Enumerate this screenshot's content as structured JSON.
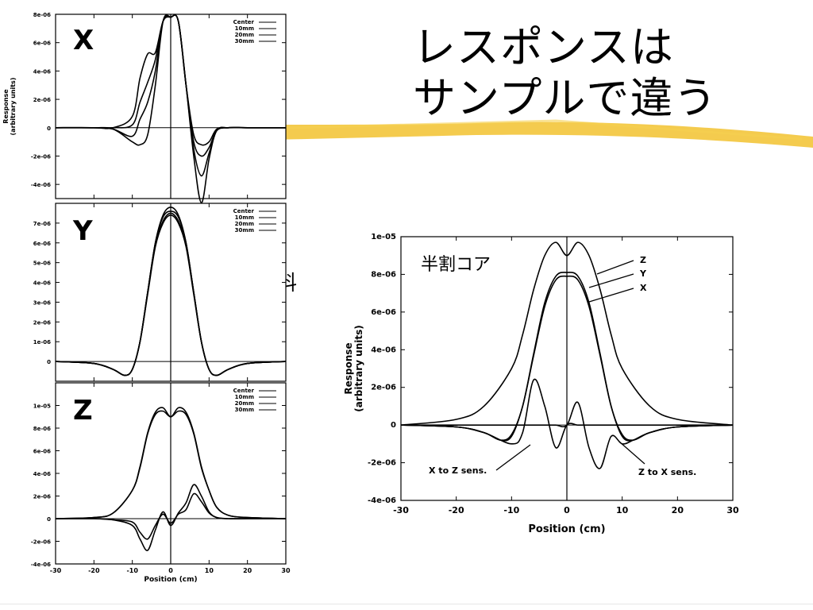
{
  "slide": {
    "title_line1": "レスポンスは",
    "title_line2": "サンプルで違う",
    "point_sample_label": "点試料",
    "half_core_label": "半割コア"
  },
  "chart_data": [
    {
      "type": "line",
      "panel": "X",
      "ylabel": "Response\n(arbitrary units)",
      "xlim": [
        -30,
        30
      ],
      "ylim": [
        -5e-06,
        8e-06
      ],
      "yticks": [
        "8e-06",
        "6e-06",
        "4e-06",
        "2e-06",
        "0",
        "-2e-06",
        "-4e-06"
      ],
      "legend": [
        "Center",
        "10mm",
        "20mm",
        "30mm"
      ],
      "legend_position": "top-right",
      "series": [
        {
          "name": "Center",
          "x": [
            -30,
            -20,
            -15,
            -10,
            -8,
            -6,
            -4,
            -2,
            0,
            2,
            4,
            6,
            8,
            10,
            12,
            15,
            20,
            30
          ],
          "y": [
            0,
            0,
            -1e-07,
            -1e-06,
            -1.2e-06,
            -5e-07,
            3e-06,
            7.5e-06,
            7.8e-06,
            7.5e-06,
            3e-06,
            -5e-07,
            -1.2e-06,
            -1e-06,
            -1e-07,
            0,
            0,
            0
          ]
        },
        {
          "name": "10mm",
          "x": [
            -30,
            -20,
            -15,
            -10,
            -8,
            -6,
            -4,
            -2,
            0,
            2,
            4,
            6,
            8,
            10,
            12,
            15,
            20,
            30
          ],
          "y": [
            0,
            0,
            -1e-07,
            -6e-07,
            6e-07,
            1.8e-06,
            4e-06,
            7.5e-06,
            7.8e-06,
            7.5e-06,
            3e-06,
            -1e-06,
            -2e-06,
            -1.4e-06,
            -2e-07,
            0,
            0,
            0
          ]
        },
        {
          "name": "20mm",
          "x": [
            -30,
            -20,
            -15,
            -10,
            -8,
            -6,
            -4,
            -2,
            0,
            2,
            4,
            6,
            8,
            10,
            12,
            15,
            20,
            30
          ],
          "y": [
            0,
            0,
            0,
            2e-07,
            1.8e-06,
            3.2e-06,
            4.8e-06,
            7.5e-06,
            7.8e-06,
            7.5e-06,
            3e-06,
            -1.5e-06,
            -3.4e-06,
            -1.8e-06,
            -2e-07,
            0,
            0,
            0
          ]
        },
        {
          "name": "30mm",
          "x": [
            -30,
            -20,
            -15,
            -10,
            -8,
            -6,
            -4,
            -2,
            0,
            2,
            4,
            6,
            8,
            10,
            12,
            15,
            20,
            30
          ],
          "y": [
            0,
            0,
            0,
            8e-07,
            3.5e-06,
            5.2e-06,
            5.3e-06,
            7.5e-06,
            7.8e-06,
            7.5e-06,
            3e-06,
            -2e-06,
            -5.3e-06,
            -2.2e-06,
            -2e-07,
            0,
            0,
            0
          ]
        }
      ]
    },
    {
      "type": "line",
      "panel": "Y",
      "xlim": [
        -30,
        30
      ],
      "ylim": [
        -1e-06,
        8e-06
      ],
      "yticks": [
        "7e-06",
        "6e-06",
        "5e-06",
        "4e-06",
        "3e-06",
        "2e-06",
        "1e-06",
        "0"
      ],
      "legend": [
        "Center",
        "10mm",
        "20mm",
        "30mm"
      ],
      "legend_position": "top-right",
      "series": [
        {
          "name": "Center",
          "x": [
            -30,
            -20,
            -15,
            -12,
            -10,
            -8,
            -6,
            -4,
            -2,
            0,
            2,
            4,
            6,
            8,
            10,
            12,
            15,
            20,
            30
          ],
          "y": [
            0,
            -1e-07,
            -4e-07,
            -7e-07,
            -4e-07,
            1e-06,
            3.5e-06,
            6e-06,
            7.4e-06,
            7.8e-06,
            7.4e-06,
            6e-06,
            3.5e-06,
            1e-06,
            -4e-07,
            -7e-07,
            -4e-07,
            -1e-07,
            0
          ]
        },
        {
          "name": "10mm",
          "x": [
            -30,
            -20,
            -15,
            -12,
            -10,
            -8,
            -6,
            -4,
            -2,
            0,
            2,
            4,
            6,
            8,
            10,
            12,
            15,
            20,
            30
          ],
          "y": [
            0,
            -1e-07,
            -4e-07,
            -7e-07,
            -4e-07,
            1e-06,
            3.5e-06,
            6e-06,
            7.3e-06,
            7.6e-06,
            7.3e-06,
            6e-06,
            3.5e-06,
            1e-06,
            -4e-07,
            -7e-07,
            -4e-07,
            -1e-07,
            0
          ]
        },
        {
          "name": "20mm",
          "x": [
            -30,
            -20,
            -15,
            -12,
            -10,
            -8,
            -6,
            -4,
            -2,
            0,
            2,
            4,
            6,
            8,
            10,
            12,
            15,
            20,
            30
          ],
          "y": [
            0,
            -1e-07,
            -4e-07,
            -7e-07,
            -4e-07,
            1e-06,
            3.5e-06,
            5.9e-06,
            7.1e-06,
            7.5e-06,
            7.1e-06,
            5.9e-06,
            3.5e-06,
            1e-06,
            -4e-07,
            -7e-07,
            -4e-07,
            -1e-07,
            0
          ]
        },
        {
          "name": "30mm",
          "x": [
            -30,
            -20,
            -15,
            -12,
            -10,
            -8,
            -6,
            -4,
            -2,
            0,
            2,
            4,
            6,
            8,
            10,
            12,
            15,
            20,
            30
          ],
          "y": [
            0,
            -1e-07,
            -4e-07,
            -7e-07,
            -4e-07,
            1e-06,
            3.4e-06,
            5.8e-06,
            7e-06,
            7.4e-06,
            7e-06,
            5.8e-06,
            3.4e-06,
            1e-06,
            -4e-07,
            -7e-07,
            -4e-07,
            -1e-07,
            0
          ]
        }
      ]
    },
    {
      "type": "line",
      "panel": "Z",
      "xlabel": "Position (cm)",
      "xlim": [
        -30,
        30
      ],
      "ylim": [
        -4e-06,
        1.2e-05
      ],
      "xticks": [
        "-30",
        "-20",
        "-10",
        "0",
        "10",
        "20",
        "30"
      ],
      "yticks": [
        "1e-05",
        "8e-06",
        "6e-06",
        "4e-06",
        "2e-06",
        "0",
        "-2e-06",
        "-4e-06"
      ],
      "legend": [
        "Center",
        "10mm",
        "20mm",
        "30mm"
      ],
      "legend_position": "top-right",
      "series": [
        {
          "name": "Center",
          "x": [
            -30,
            -20,
            -15,
            -10,
            -8,
            -6,
            -4,
            -2,
            0,
            2,
            4,
            6,
            8,
            10,
            12,
            15,
            20,
            30
          ],
          "y": [
            0,
            1e-07,
            5e-07,
            2.5e-06,
            4.5e-06,
            7.5e-06,
            9.2e-06,
            9.5e-06,
            9e-06,
            9.5e-06,
            9.2e-06,
            7.5e-06,
            4.5e-06,
            2.5e-06,
            1e-06,
            3e-07,
            1e-07,
            0
          ]
        },
        {
          "name": "10mm",
          "x": [
            -30,
            -20,
            -15,
            -10,
            -8,
            -6,
            -4,
            -2,
            0,
            2,
            4,
            6,
            8,
            10,
            12,
            15,
            20,
            30
          ],
          "y": [
            0,
            1e-07,
            5e-07,
            2.5e-06,
            4.6e-06,
            7.6e-06,
            9.4e-06,
            9.8e-06,
            9e-06,
            9.8e-06,
            9.4e-06,
            7.6e-06,
            4.6e-06,
            2.5e-06,
            1e-06,
            3e-07,
            1e-07,
            0
          ]
        },
        {
          "name": "20mm",
          "x": [
            -30,
            -20,
            -15,
            -10,
            -8,
            -6,
            -4,
            -2,
            0,
            2,
            4,
            6,
            8,
            10,
            12,
            15,
            20,
            30
          ],
          "y": [
            0,
            0,
            -1e-07,
            -3e-07,
            -1.2e-06,
            -1.8e-06,
            -6e-07,
            4e-07,
            -4e-07,
            4e-07,
            8e-07,
            2.2e-06,
            1.5e-06,
            5e-07,
            1e-07,
            0,
            0,
            0
          ]
        },
        {
          "name": "30mm",
          "x": [
            -30,
            -20,
            -15,
            -10,
            -8,
            -6,
            -4,
            -2,
            0,
            2,
            4,
            6,
            8,
            10,
            12,
            15,
            20,
            30
          ],
          "y": [
            0,
            0,
            -1e-07,
            -6e-07,
            -1.8e-06,
            -2.8e-06,
            -1e-06,
            6e-07,
            -6e-07,
            5e-07,
            1.4e-06,
            3e-06,
            2e-06,
            6e-07,
            1e-07,
            0,
            0,
            0
          ]
        }
      ]
    },
    {
      "type": "line",
      "panel": "half-core",
      "xlabel": "Position (cm)",
      "ylabel": "Response\n(arbitrary units)",
      "xlim": [
        -30,
        30
      ],
      "ylim": [
        -4e-06,
        1e-05
      ],
      "xticks": [
        "-30",
        "-20",
        "-10",
        "0",
        "10",
        "20",
        "30"
      ],
      "yticks": [
        "1e-05",
        "8e-06",
        "6e-06",
        "4e-06",
        "2e-06",
        "0",
        "-2e-06",
        "-4e-06"
      ],
      "annotations": [
        "Z",
        "Y",
        "X",
        "X to Z sens.",
        "Z to X sens."
      ],
      "series": [
        {
          "name": "Z",
          "x": [
            -30,
            -20,
            -15,
            -10,
            -8,
            -6,
            -4,
            -2,
            0,
            2,
            4,
            6,
            8,
            10,
            15,
            20,
            30
          ],
          "y": [
            0,
            3e-07,
            1e-06,
            3e-06,
            4.8e-06,
            7.2e-06,
            9e-06,
            9.7e-06,
            9e-06,
            9.7e-06,
            9e-06,
            7.2e-06,
            4.8e-06,
            3e-06,
            1e-06,
            3e-07,
            0
          ]
        },
        {
          "name": "Y",
          "x": [
            -30,
            -20,
            -15,
            -12,
            -10,
            -8,
            -6,
            -4,
            -2,
            0,
            2,
            4,
            6,
            8,
            10,
            12,
            15,
            20,
            30
          ],
          "y": [
            0,
            -1e-07,
            -4e-07,
            -8e-07,
            -5e-07,
            1e-06,
            3.8e-06,
            6.5e-06,
            7.9e-06,
            8.1e-06,
            7.9e-06,
            6.5e-06,
            3.8e-06,
            1e-06,
            -5e-07,
            -8e-07,
            -4e-07,
            -1e-07,
            0
          ]
        },
        {
          "name": "X",
          "x": [
            -30,
            -20,
            -15,
            -12,
            -10,
            -8,
            -6,
            -4,
            -2,
            0,
            2,
            4,
            6,
            8,
            10,
            12,
            15,
            20,
            30
          ],
          "y": [
            0,
            -1e-07,
            -4e-07,
            -8e-07,
            -6e-07,
            1e-06,
            3.7e-06,
            6.3e-06,
            7.7e-06,
            7.9e-06,
            7.7e-06,
            6.3e-06,
            3.7e-06,
            1e-06,
            -6e-07,
            -8e-07,
            -4e-07,
            -1e-07,
            0
          ]
        },
        {
          "name": "X to Z sens.",
          "x": [
            -30,
            -20,
            -15,
            -10,
            -8,
            -6,
            -4,
            -2,
            0,
            2,
            4,
            6,
            8,
            10,
            12,
            15,
            20,
            30
          ],
          "y": [
            0,
            -1e-07,
            -4e-07,
            -1e-06,
            -4e-07,
            2.4e-06,
            1e-06,
            -1.2e-06,
            0,
            0,
            0,
            0,
            0,
            0,
            0,
            0,
            0,
            0
          ]
        },
        {
          "name": "Z to X sens.",
          "x": [
            -30,
            -20,
            -15,
            -10,
            -8,
            -6,
            -4,
            -2,
            0,
            2,
            4,
            6,
            8,
            10,
            12,
            15,
            20,
            30
          ],
          "y": [
            0,
            0,
            0,
            0,
            0,
            0,
            0,
            0,
            0,
            1.2e-06,
            -1.2e-06,
            -2.3e-06,
            -6e-07,
            -1e-06,
            -8e-07,
            -4e-07,
            -1e-07,
            0
          ]
        }
      ]
    }
  ],
  "colors": {
    "highlight": "#f2c22f",
    "ink": "#000000"
  }
}
